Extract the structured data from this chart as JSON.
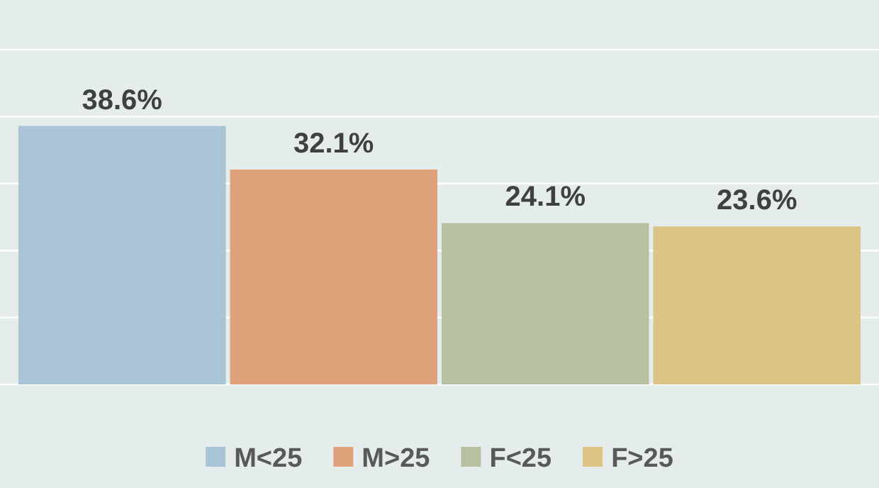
{
  "chart_data": {
    "type": "bar",
    "categories": [
      null
    ],
    "series": [
      {
        "name": "M<25",
        "color": "#a9c4d6",
        "values": [
          38.6
        ],
        "value_labels": [
          "38.6%"
        ]
      },
      {
        "name": "M>25",
        "color": "#e0a27a",
        "values": [
          32.1
        ],
        "value_labels": [
          "32.1%"
        ]
      },
      {
        "name": "F<25",
        "color": "#b8c0a2",
        "values": [
          24.1
        ],
        "value_labels": [
          "24.1%"
        ]
      },
      {
        "name": "F>25",
        "color": "#dcc487",
        "values": [
          23.6
        ],
        "value_labels": [
          "23.6%"
        ]
      }
    ],
    "ylim": [
      0,
      50
    ],
    "yticks": [
      {
        "value": 0,
        "label": null
      },
      {
        "value": 10,
        "label": null
      },
      {
        "value": 20,
        "label": null
      },
      {
        "value": 30,
        "label": null
      },
      {
        "value": 40,
        "label": null
      },
      {
        "value": 50,
        "label": null
      }
    ],
    "grid": "y",
    "legend": "bottom"
  }
}
